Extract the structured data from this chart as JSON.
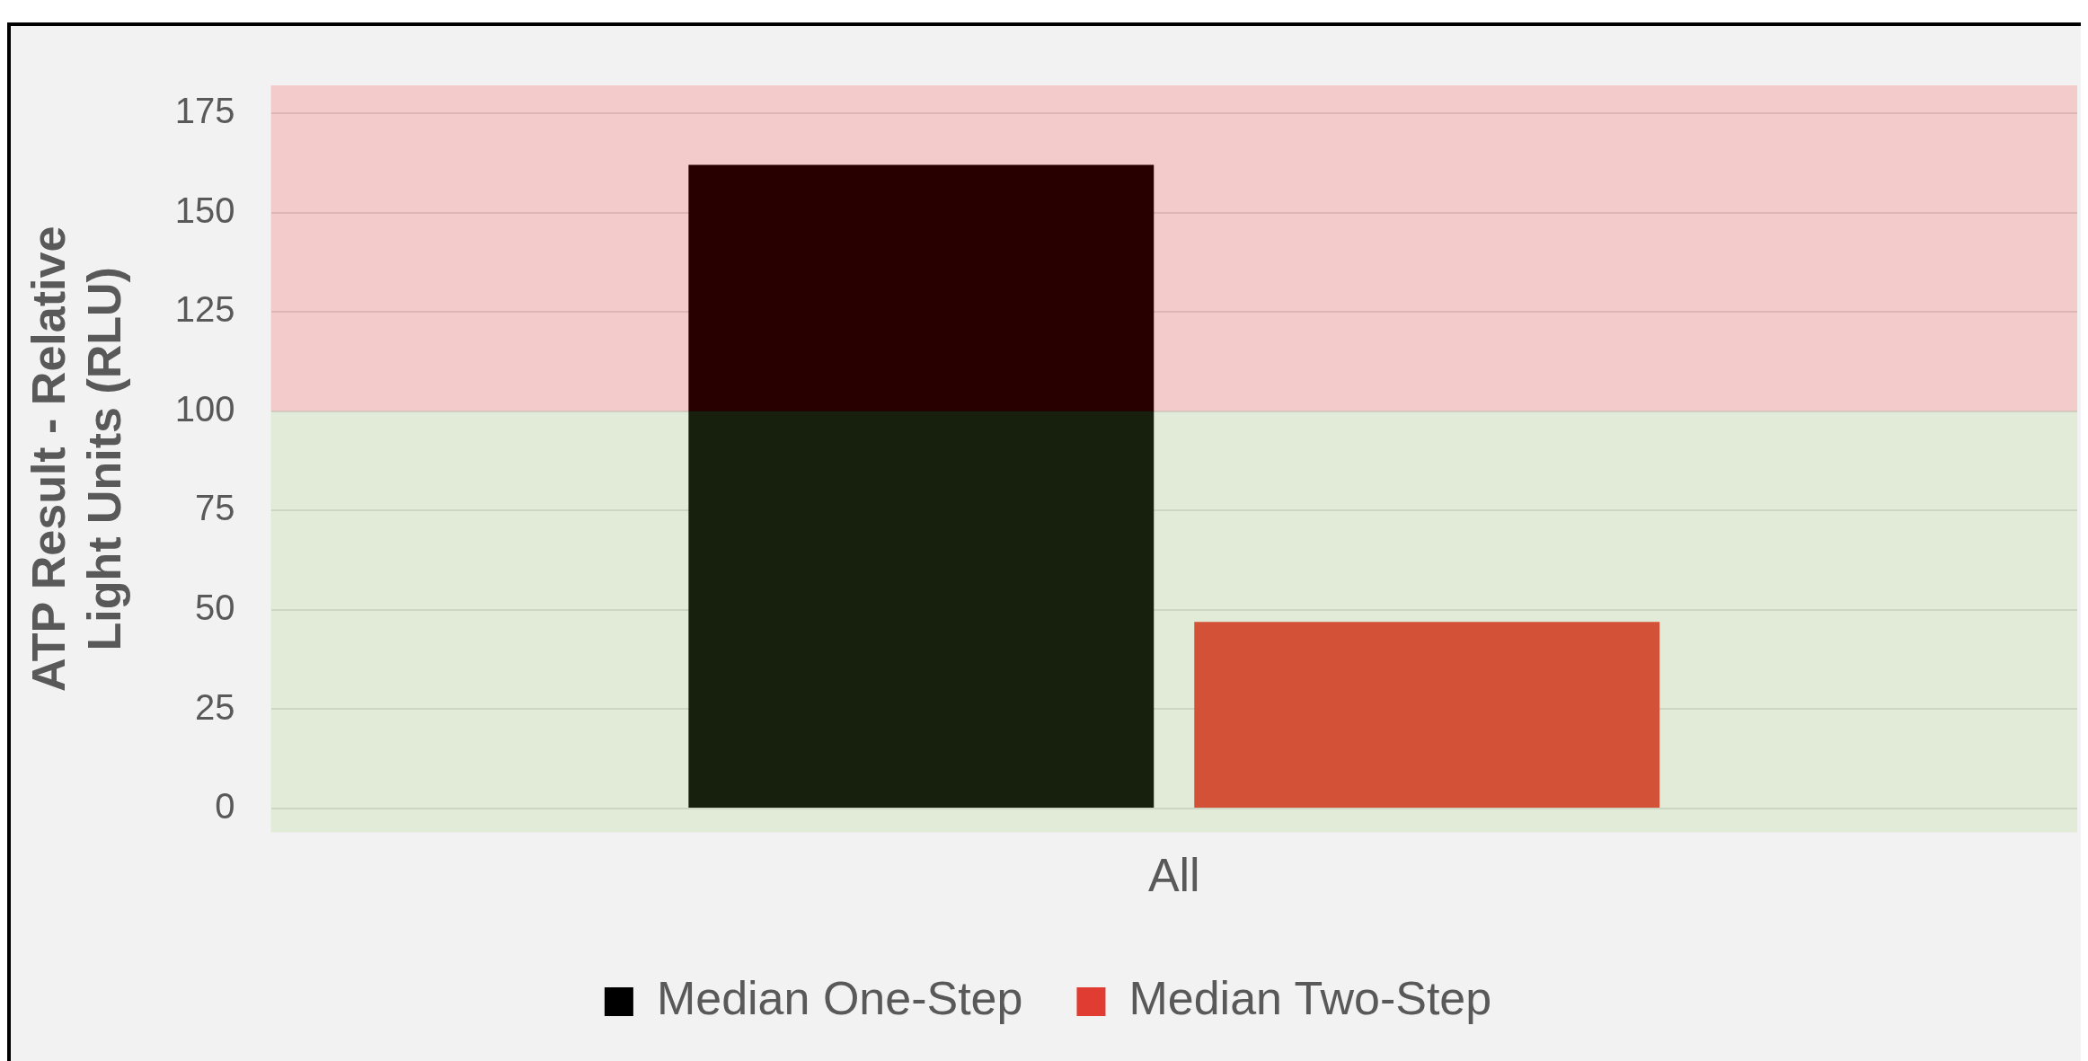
{
  "chart_data": {
    "type": "bar",
    "ylabel": "ATP Result - Relative Light Units (RLU)",
    "categories": [
      "All"
    ],
    "series": [
      {
        "name": "Median One-Step",
        "color": "#000000",
        "values": [
          162
        ]
      },
      {
        "name": "Median Two-Step",
        "color": "#e03c31",
        "values": [
          47
        ]
      }
    ],
    "ylim": [
      -6,
      182
    ],
    "yticks": [
      0,
      25,
      50,
      75,
      100,
      125,
      150,
      175
    ],
    "grid": "y",
    "legend": "bottom",
    "bands": [
      {
        "axis": "y",
        "from": 100,
        "to": 182,
        "color": "#ff0000"
      },
      {
        "axis": "y",
        "from": -6,
        "to": 100,
        "color": "#8cc251"
      }
    ]
  }
}
